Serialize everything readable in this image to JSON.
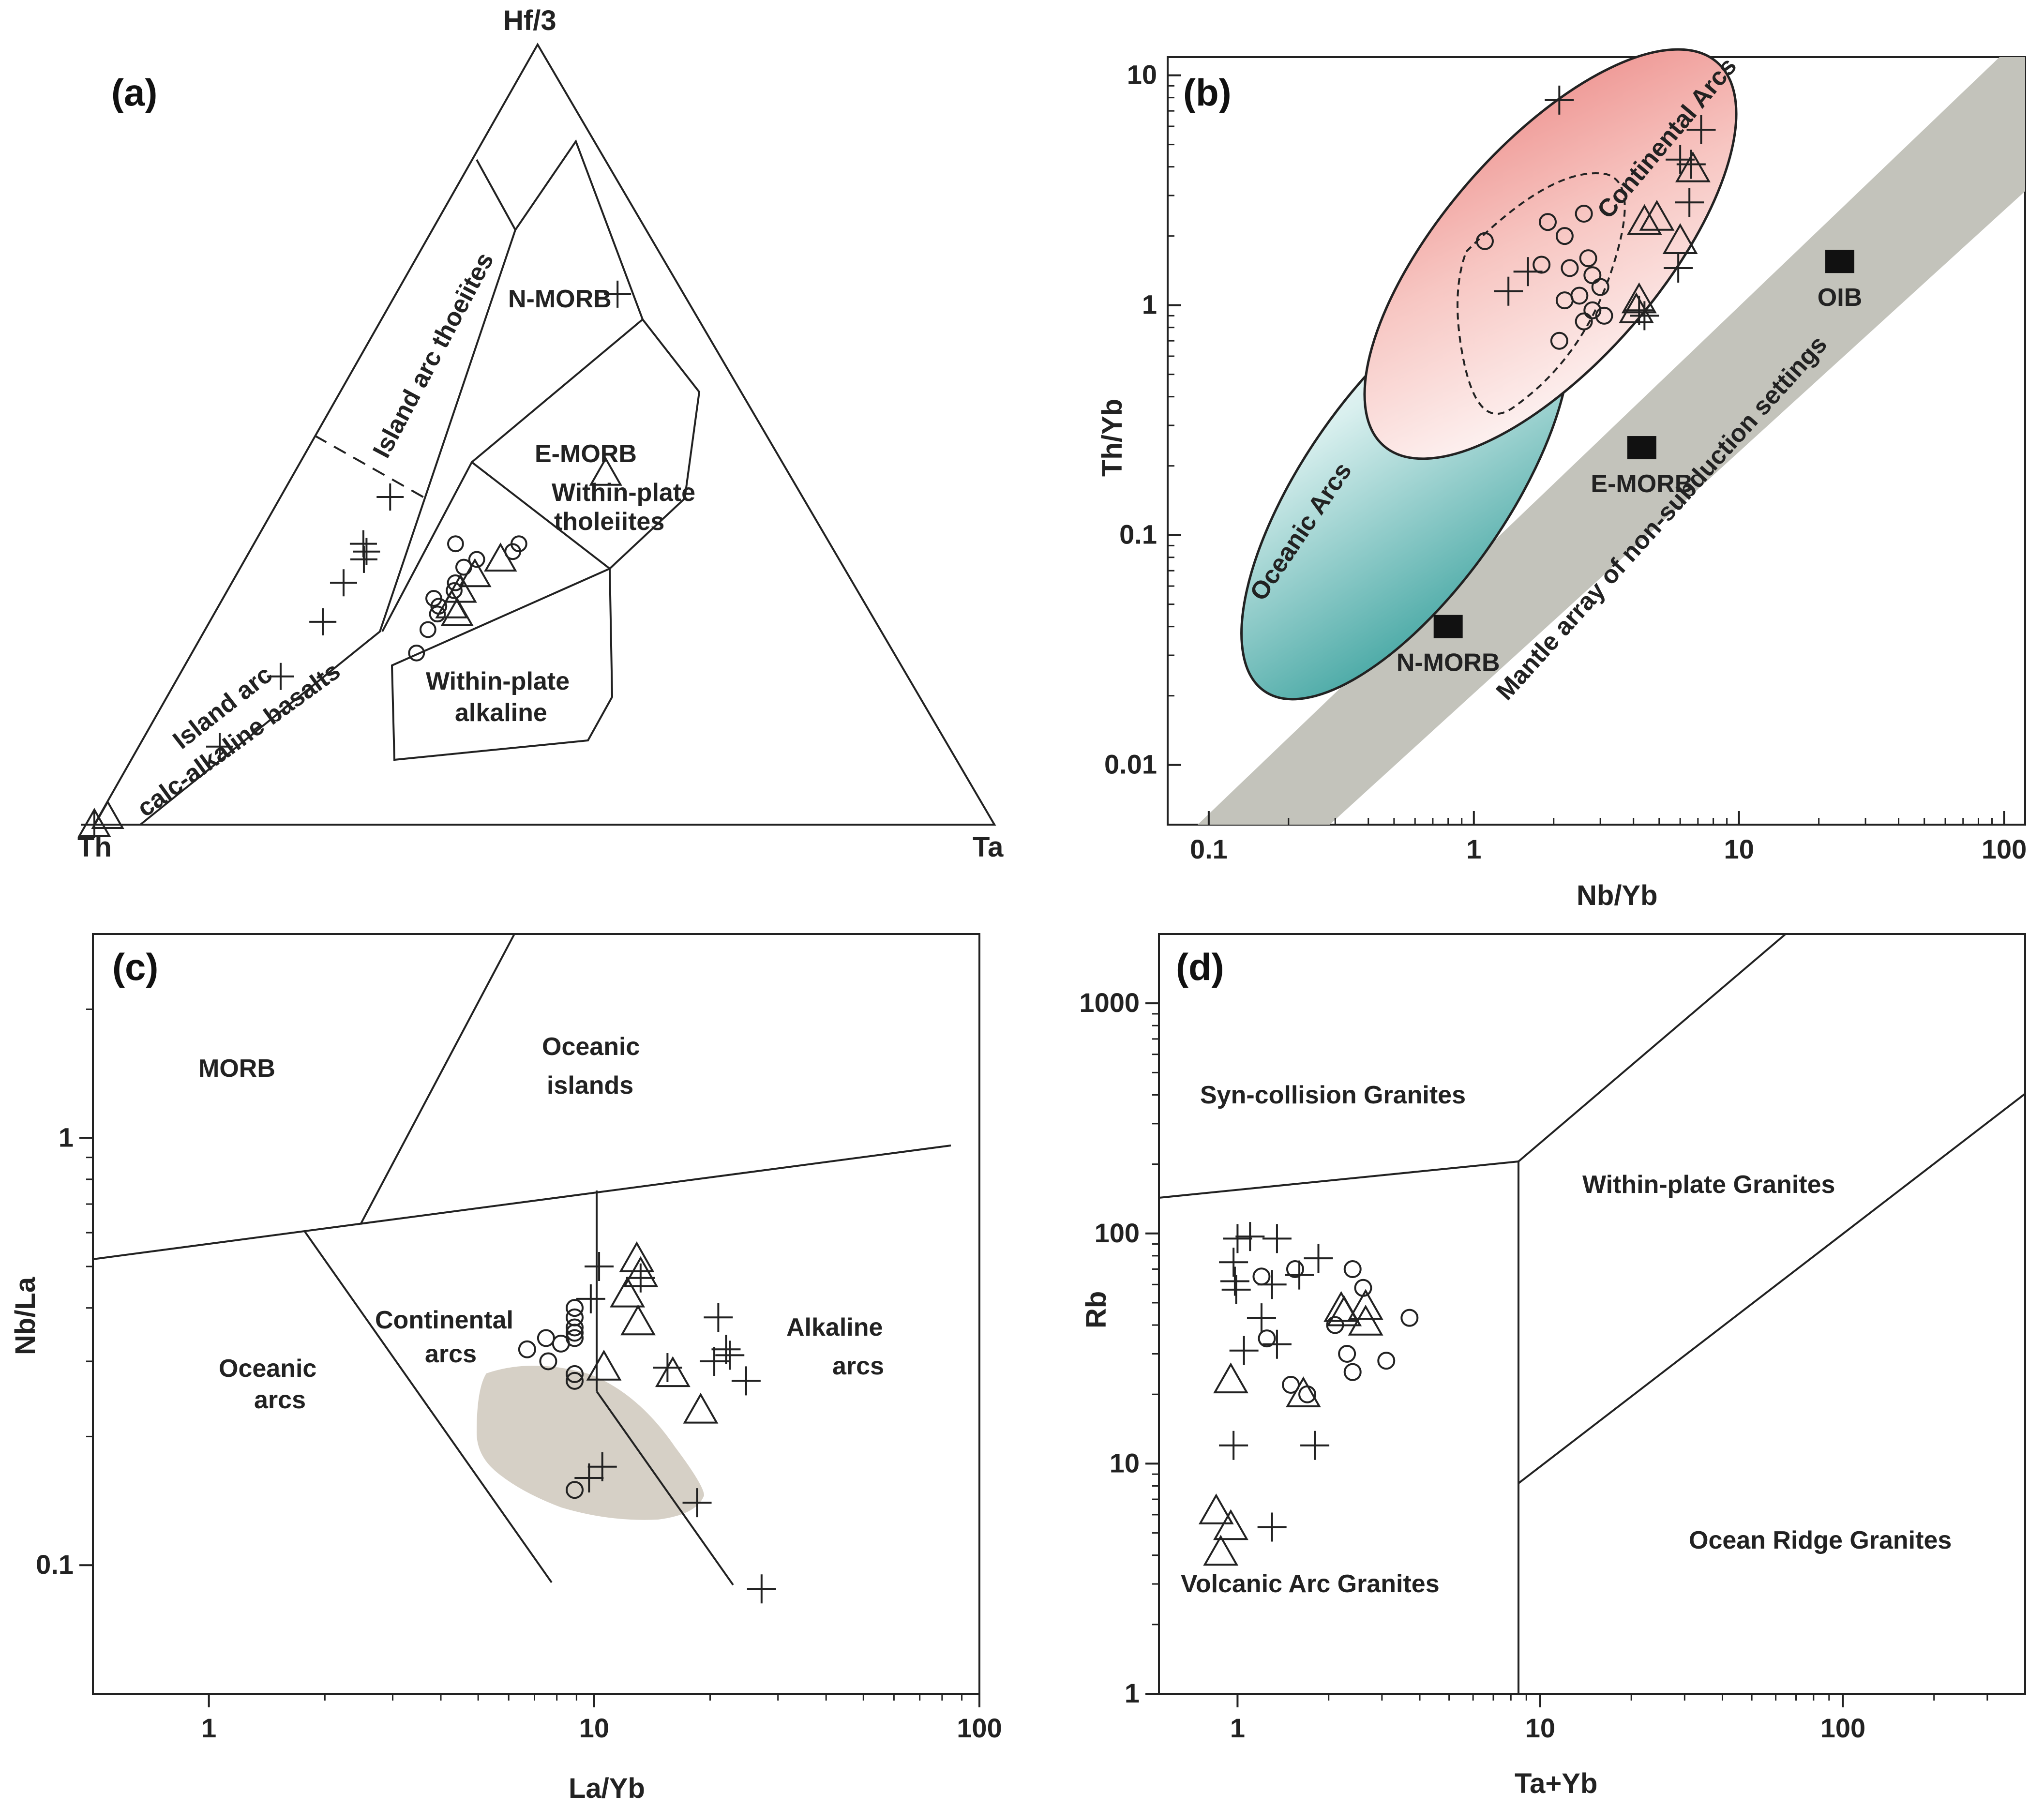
{
  "chart_data": [
    {
      "panel": "(a)",
      "type": "scatter",
      "subtype": "ternary",
      "apices": {
        "top": "Hf/3",
        "left": "Th",
        "right": "Ta"
      },
      "fields": [
        "Island arc thoeiites",
        "N-MORB",
        "E-MORB",
        "Within-plate tholeiites",
        "Within-plate alkaline",
        "Island arc calc-alkaline basalts"
      ],
      "series": [
        {
          "name": "cross",
          "marker": "+",
          "points": [
            [
              0.42,
              0.21
            ],
            [
              0.36,
              0.19
            ],
            [
              0.35,
              0.2
            ],
            [
              0.34,
              0.2
            ],
            [
              0.31,
              0.18
            ],
            [
              0.26,
              0.17
            ],
            [
              0.19,
              0.14
            ],
            [
              0.1,
              0.1
            ],
            [
              0.0,
              0.0
            ],
            [
              0.68,
              0.77
            ]
          ]
        },
        {
          "name": "circle",
          "marker": "o",
          "points": [
            [
              0.22,
              0.32
            ],
            [
              0.25,
              0.33
            ],
            [
              0.27,
              0.34
            ],
            [
              0.28,
              0.34
            ],
            [
              0.29,
              0.33
            ],
            [
              0.31,
              0.36
            ],
            [
              0.33,
              0.37
            ],
            [
              0.34,
              0.39
            ],
            [
              0.36,
              0.35
            ],
            [
              0.3,
              0.36
            ],
            [
              0.35,
              0.45
            ],
            [
              0.36,
              0.46
            ]
          ]
        },
        {
          "name": "triangle",
          "marker": "triangle",
          "points": [
            [
              0.27,
              0.37
            ],
            [
              0.28,
              0.36
            ],
            [
              0.3,
              0.37
            ],
            [
              0.32,
              0.39
            ],
            [
              0.34,
              0.43
            ],
            [
              0.0,
              0.0
            ],
            [
              0.01,
              0.01
            ],
            [
              0.45,
              0.63
            ]
          ]
        }
      ]
    },
    {
      "panel": "(b)",
      "type": "scatter",
      "xlabel": "Nb/Yb",
      "ylabel": "Th/Yb",
      "xscale": "log",
      "yscale": "log",
      "xlim": [
        0.07,
        120
      ],
      "ylim": [
        0.0055,
        12
      ],
      "xticks": [
        "0.1",
        "1",
        "10",
        "100"
      ],
      "yticks": [
        "0.01",
        "0.1",
        "1",
        "10"
      ],
      "fields": [
        "Oceanic Arcs",
        "Continental Arcs",
        "Mantle array of non-subduction settings"
      ],
      "reference_points": [
        {
          "label": "N-MORB",
          "x": 0.8,
          "y": 0.04
        },
        {
          "label": "E-MORB",
          "x": 4.3,
          "y": 0.24
        },
        {
          "label": "OIB",
          "x": 24,
          "y": 1.55
        }
      ],
      "series": [
        {
          "name": "cross",
          "marker": "+",
          "values": [
            [
              2.1,
              7.8
            ],
            [
              7.2,
              5.8
            ],
            [
              6.0,
              4.3
            ],
            [
              6.6,
              4.1
            ],
            [
              6.5,
              2.8
            ],
            [
              1.35,
              1.15
            ],
            [
              1.6,
              1.4
            ],
            [
              5.9,
              1.45
            ],
            [
              4.2,
              0.95
            ],
            [
              4.4,
              0.9
            ]
          ]
        },
        {
          "name": "circle",
          "marker": "o",
          "values": [
            [
              1.1,
              1.9
            ],
            [
              1.9,
              2.3
            ],
            [
              2.6,
              2.5
            ],
            [
              2.2,
              2.0
            ],
            [
              1.8,
              1.5
            ],
            [
              2.3,
              1.45
            ],
            [
              2.7,
              1.6
            ],
            [
              2.8,
              1.35
            ],
            [
              3.0,
              1.2
            ],
            [
              2.5,
              1.1
            ],
            [
              2.2,
              1.05
            ],
            [
              2.8,
              0.95
            ],
            [
              3.1,
              0.9
            ],
            [
              2.6,
              0.85
            ],
            [
              2.1,
              0.7
            ]
          ]
        },
        {
          "name": "triangle",
          "marker": "triangle",
          "values": [
            [
              6.7,
              3.9
            ],
            [
              4.4,
              2.3
            ],
            [
              4.9,
              2.4
            ],
            [
              6.0,
              1.9
            ],
            [
              4.2,
              1.05
            ],
            [
              4.1,
              0.95
            ]
          ]
        }
      ]
    },
    {
      "panel": "(c)",
      "type": "scatter",
      "xlabel": "La/Yb",
      "ylabel": "Nb/La",
      "xscale": "log",
      "yscale": "log",
      "xlim": [
        0.5,
        100
      ],
      "ylim": [
        0.05,
        3.0
      ],
      "xticks": [
        "1",
        "10",
        "100"
      ],
      "yticks": [
        "0.1",
        "1"
      ],
      "fields": [
        "MORB",
        "Oceanic islands",
        "Oceanic arcs",
        "Continental arcs",
        "Alkaline arcs"
      ],
      "series": [
        {
          "name": "cross",
          "marker": "+",
          "values": [
            [
              10.3,
              0.5
            ],
            [
              9.8,
              0.42
            ],
            [
              13.2,
              0.47
            ],
            [
              21,
              0.38
            ],
            [
              22,
              0.32
            ],
            [
              22.5,
              0.31
            ],
            [
              20.5,
              0.3
            ],
            [
              15.5,
              0.29
            ],
            [
              24.8,
              0.27
            ],
            [
              10.5,
              0.17
            ],
            [
              9.7,
              0.16
            ],
            [
              18.5,
              0.14
            ],
            [
              27.2,
              0.088
            ]
          ]
        },
        {
          "name": "circle",
          "marker": "o",
          "values": [
            [
              6.7,
              0.32
            ],
            [
              7.5,
              0.34
            ],
            [
              8.2,
              0.33
            ],
            [
              8.9,
              0.34
            ],
            [
              8.9,
              0.36
            ],
            [
              8.9,
              0.38
            ],
            [
              8.9,
              0.4
            ],
            [
              8.9,
              0.35
            ],
            [
              7.6,
              0.3
            ],
            [
              8.9,
              0.28
            ],
            [
              8.9,
              0.27
            ],
            [
              8.9,
              0.15
            ]
          ]
        },
        {
          "name": "triangle",
          "marker": "triangle",
          "values": [
            [
              12.9,
              0.52
            ],
            [
              13.2,
              0.48
            ],
            [
              12.2,
              0.43
            ],
            [
              13.0,
              0.37
            ],
            [
              10.6,
              0.29
            ],
            [
              16.0,
              0.28
            ],
            [
              18.9,
              0.23
            ]
          ]
        }
      ]
    },
    {
      "panel": "(d)",
      "type": "scatter",
      "xlabel": "Ta+Yb",
      "ylabel": "Rb",
      "xscale": "log",
      "yscale": "log",
      "xlim": [
        0.55,
        400
      ],
      "ylim": [
        1,
        2000
      ],
      "xticks": [
        "1",
        "10",
        "100"
      ],
      "yticks": [
        "1",
        "10",
        "100",
        "1000"
      ],
      "fields": [
        "Syn-collision Granites",
        "Within-plate Granites",
        "Volcanic Arc Granites",
        "Ocean Ridge Granites"
      ],
      "series": [
        {
          "name": "cross",
          "marker": "+",
          "values": [
            [
              1.0,
              95
            ],
            [
              1.1,
              97
            ],
            [
              1.35,
              95
            ],
            [
              0.97,
              75
            ],
            [
              1.3,
              60
            ],
            [
              1.6,
              66
            ],
            [
              1.85,
              78
            ],
            [
              0.98,
              62
            ],
            [
              0.99,
              57
            ],
            [
              1.2,
              43
            ],
            [
              1.05,
              31
            ],
            [
              1.35,
              33
            ],
            [
              0.97,
              12
            ],
            [
              1.8,
              12
            ],
            [
              1.3,
              5.3
            ]
          ]
        },
        {
          "name": "circle",
          "marker": "o",
          "values": [
            [
              1.2,
              65
            ],
            [
              1.55,
              70
            ],
            [
              2.4,
              70
            ],
            [
              2.6,
              58
            ],
            [
              2.1,
              40
            ],
            [
              3.7,
              43
            ],
            [
              1.25,
              35
            ],
            [
              2.3,
              30
            ],
            [
              3.1,
              28
            ],
            [
              2.4,
              25
            ],
            [
              1.5,
              22
            ],
            [
              1.7,
              20
            ]
          ]
        },
        {
          "name": "triangle",
          "marker": "triangle",
          "values": [
            [
              2.2,
              47
            ],
            [
              2.25,
              45
            ],
            [
              2.65,
              48
            ],
            [
              2.65,
              41
            ],
            [
              0.95,
              23
            ],
            [
              1.65,
              20
            ],
            [
              0.85,
              6.2
            ],
            [
              0.95,
              5.3
            ],
            [
              0.88,
              4.1
            ]
          ]
        }
      ]
    }
  ]
}
